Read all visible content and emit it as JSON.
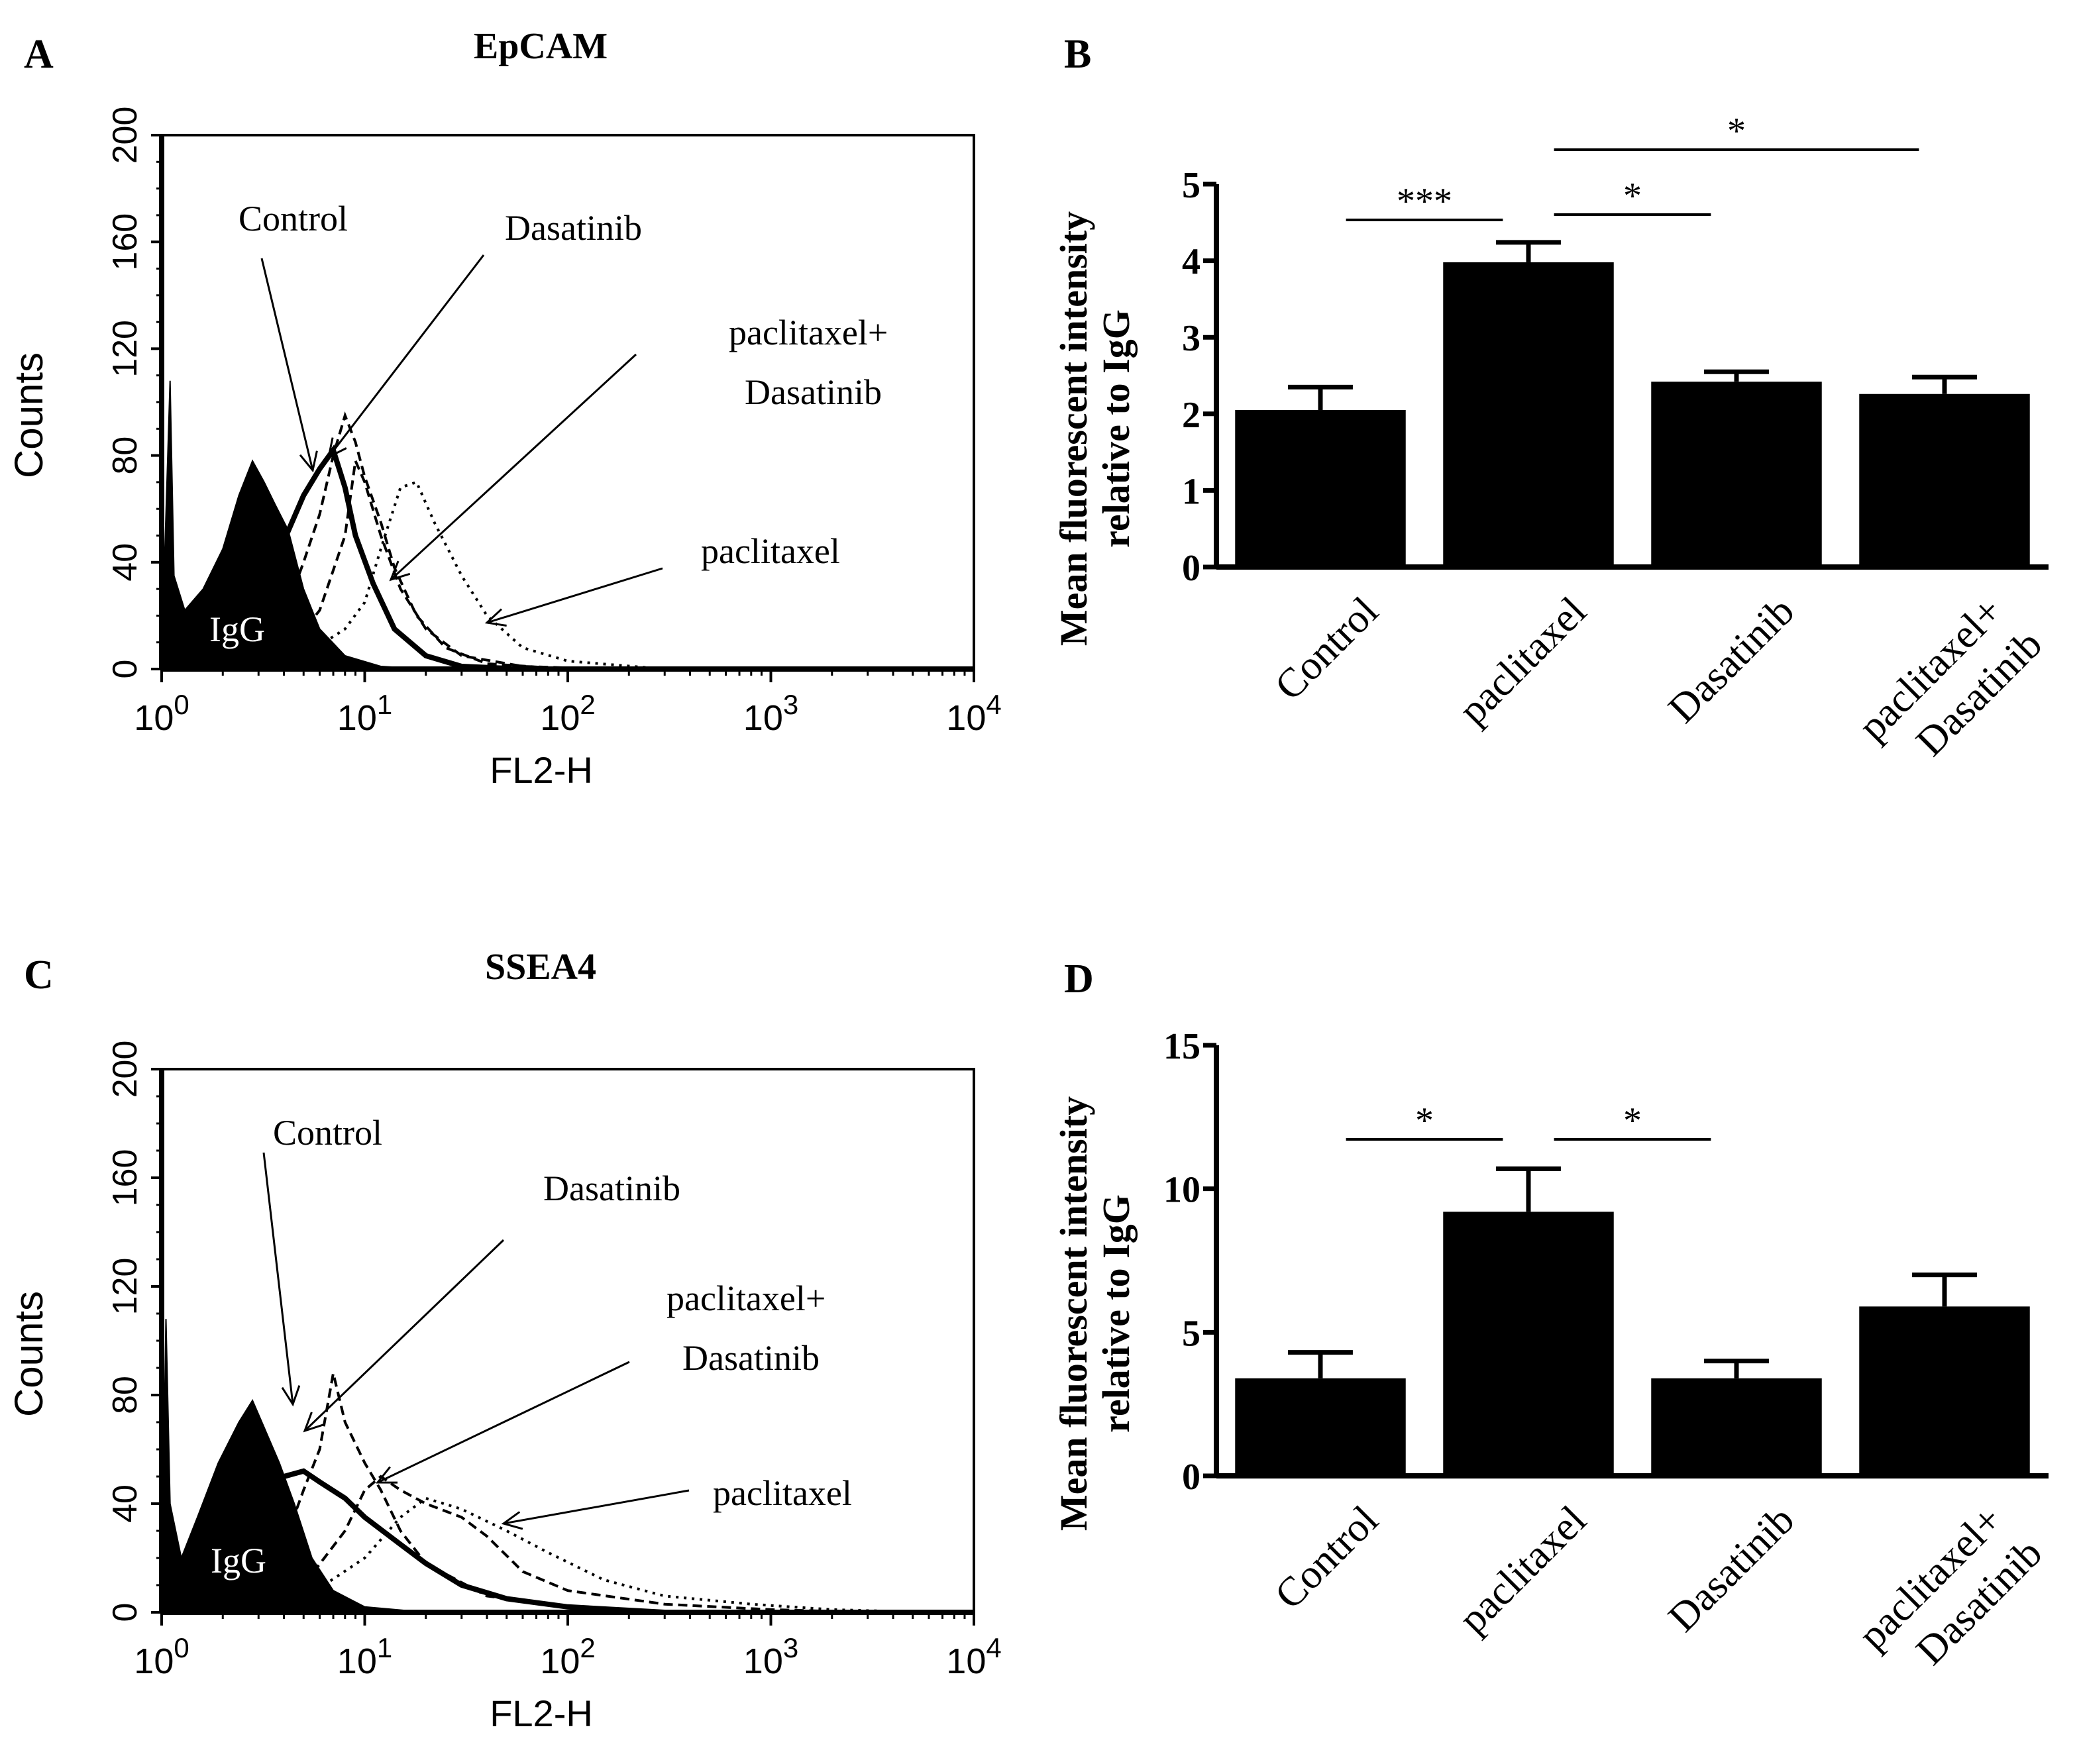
{
  "colors": {
    "ink": "#000000",
    "background": "#ffffff"
  },
  "chart_data": [
    {
      "panel": "A",
      "type": "histogram",
      "title": "EpCAM",
      "xlabel": "FL2-H",
      "ylabel": "Counts",
      "x_scale": "log",
      "xlim": [
        1,
        10000
      ],
      "ylim": [
        0,
        200
      ],
      "yticks": [
        "0",
        "40",
        "80",
        "120",
        "160",
        "200"
      ],
      "xticks": [
        {
          "base": "10",
          "exp": "0"
        },
        {
          "base": "10",
          "exp": "1"
        },
        {
          "base": "10",
          "exp": "2"
        },
        {
          "base": "10",
          "exp": "3"
        },
        {
          "base": "10",
          "exp": "4"
        }
      ],
      "series": [
        {
          "name": "IgG",
          "style": "filled",
          "points": [
            [
              1,
              5
            ],
            [
              1.1,
              108
            ],
            [
              1.15,
              35
            ],
            [
              1.3,
              22
            ],
            [
              1.6,
              30
            ],
            [
              2,
              45
            ],
            [
              2.4,
              65
            ],
            [
              2.8,
              78
            ],
            [
              3.2,
              70
            ],
            [
              3.6,
              62
            ],
            [
              4.2,
              52
            ],
            [
              5,
              30
            ],
            [
              6,
              15
            ],
            [
              8,
              5
            ],
            [
              12,
              1
            ],
            [
              20,
              0
            ]
          ]
        },
        {
          "name": "Control",
          "style": "thick",
          "points": [
            [
              1,
              0
            ],
            [
              2,
              8
            ],
            [
              3,
              22
            ],
            [
              4,
              48
            ],
            [
              5,
              65
            ],
            [
              6,
              75
            ],
            [
              7,
              82
            ],
            [
              8,
              68
            ],
            [
              9,
              50
            ],
            [
              11,
              32
            ],
            [
              14,
              15
            ],
            [
              20,
              5
            ],
            [
              30,
              1
            ],
            [
              60,
              0
            ]
          ]
        },
        {
          "name": "Dasatinib",
          "style": "dashed",
          "points": [
            [
              1,
              0
            ],
            [
              3,
              5
            ],
            [
              4,
              20
            ],
            [
              5,
              40
            ],
            [
              6,
              58
            ],
            [
              7,
              80
            ],
            [
              8,
              95
            ],
            [
              9,
              85
            ],
            [
              10,
              72
            ],
            [
              12,
              55
            ],
            [
              14,
              38
            ],
            [
              18,
              20
            ],
            [
              25,
              8
            ],
            [
              40,
              2
            ],
            [
              100,
              0
            ]
          ]
        },
        {
          "name": "paclitaxel+ Dasatinib",
          "style": "dashed",
          "points": [
            [
              1,
              0
            ],
            [
              4,
              5
            ],
            [
              6,
              22
            ],
            [
              8,
              50
            ],
            [
              9,
              78
            ],
            [
              10,
              70
            ],
            [
              12,
              50
            ],
            [
              15,
              30
            ],
            [
              20,
              15
            ],
            [
              30,
              5
            ],
            [
              60,
              1
            ],
            [
              150,
              0
            ]
          ]
        },
        {
          "name": "paclitaxel",
          "style": "dotted",
          "points": [
            [
              1,
              0
            ],
            [
              5,
              5
            ],
            [
              8,
              15
            ],
            [
              10,
              25
            ],
            [
              12,
              45
            ],
            [
              15,
              68
            ],
            [
              18,
              70
            ],
            [
              22,
              55
            ],
            [
              30,
              35
            ],
            [
              40,
              20
            ],
            [
              60,
              8
            ],
            [
              100,
              3
            ],
            [
              300,
              0
            ]
          ]
        }
      ],
      "annotations": [
        "Control",
        "Dasatinib",
        "paclitaxel+",
        "Dasatinib",
        "paclitaxel",
        "IgG"
      ]
    },
    {
      "panel": "B",
      "type": "bar",
      "ylabel_line1": "Mean fluorescent intensity",
      "ylabel_line2": "relative to IgG",
      "ylim": [
        0,
        5
      ],
      "yticks": [
        "0",
        "1",
        "2",
        "3",
        "4",
        "5"
      ],
      "categories": [
        "Control",
        "paclitaxel",
        "Dasatinib",
        "paclitaxel+ Dasatinib"
      ],
      "category_lines": [
        [
          "Control"
        ],
        [
          "paclitaxel"
        ],
        [
          "Dasatinib"
        ],
        [
          "paclitaxel+",
          "Dasatinib"
        ]
      ],
      "values": [
        2.05,
        3.98,
        2.42,
        2.26
      ],
      "errors": [
        0.3,
        0.26,
        0.13,
        0.22
      ],
      "significance": [
        {
          "from": 0,
          "to": 1,
          "label": "***"
        },
        {
          "from": 1,
          "to": 2,
          "label": "*"
        },
        {
          "from": 1,
          "to": 3,
          "label": "*"
        }
      ]
    },
    {
      "panel": "C",
      "type": "histogram",
      "title": "SSEA4",
      "xlabel": "FL2-H",
      "ylabel": "Counts",
      "x_scale": "log",
      "xlim": [
        1,
        10000
      ],
      "ylim": [
        0,
        200
      ],
      "yticks": [
        "0",
        "40",
        "80",
        "120",
        "160",
        "200"
      ],
      "xticks": [
        {
          "base": "10",
          "exp": "0"
        },
        {
          "base": "10",
          "exp": "1"
        },
        {
          "base": "10",
          "exp": "2"
        },
        {
          "base": "10",
          "exp": "3"
        },
        {
          "base": "10",
          "exp": "4"
        }
      ],
      "series": [
        {
          "name": "IgG",
          "style": "filled",
          "points": [
            [
              1,
              5
            ],
            [
              1.05,
              108
            ],
            [
              1.1,
              40
            ],
            [
              1.25,
              20
            ],
            [
              1.5,
              35
            ],
            [
              1.9,
              55
            ],
            [
              2.4,
              70
            ],
            [
              2.8,
              78
            ],
            [
              3.2,
              68
            ],
            [
              3.8,
              55
            ],
            [
              4.5,
              40
            ],
            [
              5.5,
              20
            ],
            [
              7,
              8
            ],
            [
              10,
              2
            ],
            [
              20,
              0
            ]
          ]
        },
        {
          "name": "Control",
          "style": "thick",
          "points": [
            [
              1,
              0
            ],
            [
              2,
              8
            ],
            [
              3,
              30
            ],
            [
              4,
              50
            ],
            [
              5,
              52
            ],
            [
              6,
              48
            ],
            [
              8,
              42
            ],
            [
              10,
              35
            ],
            [
              15,
              25
            ],
            [
              20,
              18
            ],
            [
              30,
              10
            ],
            [
              50,
              5
            ],
            [
              100,
              2
            ],
            [
              300,
              0
            ]
          ]
        },
        {
          "name": "Dasatinib",
          "style": "dashed",
          "points": [
            [
              1,
              0
            ],
            [
              3,
              8
            ],
            [
              4,
              25
            ],
            [
              5,
              45
            ],
            [
              6,
              60
            ],
            [
              7,
              88
            ],
            [
              8,
              70
            ],
            [
              10,
              55
            ],
            [
              12,
              45
            ],
            [
              15,
              30
            ],
            [
              20,
              18
            ],
            [
              40,
              6
            ],
            [
              100,
              2
            ],
            [
              300,
              0
            ]
          ]
        },
        {
          "name": "paclitaxel+ Dasatinib",
          "style": "dashed",
          "points": [
            [
              1,
              0
            ],
            [
              5,
              10
            ],
            [
              8,
              30
            ],
            [
              10,
              45
            ],
            [
              12,
              50
            ],
            [
              15,
              45
            ],
            [
              20,
              40
            ],
            [
              30,
              35
            ],
            [
              40,
              28
            ],
            [
              60,
              15
            ],
            [
              100,
              8
            ],
            [
              300,
              3
            ],
            [
              1000,
              1
            ],
            [
              3000,
              0
            ]
          ]
        },
        {
          "name": "paclitaxel",
          "style": "dotted",
          "points": [
            [
              1,
              0
            ],
            [
              5,
              5
            ],
            [
              10,
              20
            ],
            [
              15,
              35
            ],
            [
              20,
              42
            ],
            [
              30,
              38
            ],
            [
              50,
              30
            ],
            [
              80,
              22
            ],
            [
              150,
              12
            ],
            [
              300,
              6
            ],
            [
              800,
              3
            ],
            [
              2000,
              1
            ],
            [
              6000,
              0
            ]
          ]
        }
      ],
      "annotations": [
        "Control",
        "Dasatinib",
        "paclitaxel+",
        "Dasatinib",
        "paclitaxel",
        "IgG"
      ]
    },
    {
      "panel": "D",
      "type": "bar",
      "ylabel_line1": "Mean fluorescent intensity",
      "ylabel_line2": "relative to IgG",
      "ylim": [
        0,
        15
      ],
      "yticks": [
        "0",
        "5",
        "10",
        "15"
      ],
      "categories": [
        "Control",
        "paclitaxel",
        "Dasatinib",
        "paclitaxel+ Dasatinib"
      ],
      "category_lines": [
        [
          "Control"
        ],
        [
          "paclitaxel"
        ],
        [
          "Dasatinib"
        ],
        [
          "paclitaxel+",
          "Dasatinib"
        ]
      ],
      "values": [
        3.4,
        9.2,
        3.4,
        5.9
      ],
      "errors": [
        0.9,
        1.5,
        0.6,
        1.1
      ],
      "significance": [
        {
          "from": 0,
          "to": 1,
          "label": "*"
        },
        {
          "from": 1,
          "to": 2,
          "label": "*"
        }
      ]
    }
  ]
}
